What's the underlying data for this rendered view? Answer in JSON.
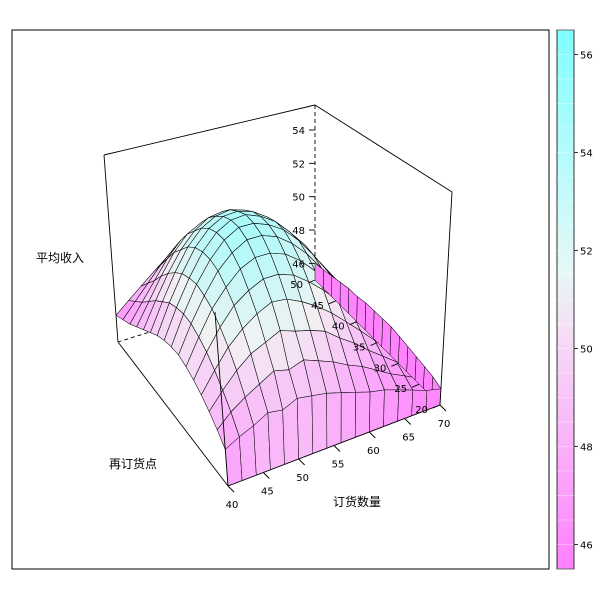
{
  "chart_data": {
    "type": "surface3d",
    "title": "",
    "xlabel": "订货数量",
    "ylabel": "再订货点",
    "zlabel": "平均收入",
    "x_ticks": [
      40,
      45,
      50,
      55,
      60,
      65,
      70
    ],
    "y_ticks": [
      20,
      25,
      30,
      35,
      40,
      45,
      50
    ],
    "z_ticks": [
      46,
      48,
      50,
      52,
      54
    ],
    "xlim": [
      40,
      70
    ],
    "ylim": [
      20,
      50
    ],
    "zlim": [
      45,
      55.5
    ],
    "surface": {
      "description_peak": {
        "x": 55,
        "y": 40,
        "z": 54.5
      },
      "edge_value": 46.5,
      "x": [
        40,
        42,
        44,
        46,
        48,
        50,
        52,
        54,
        56,
        58,
        60,
        62,
        64,
        66,
        68,
        70
      ],
      "y": [
        20,
        22,
        24,
        26,
        28,
        30,
        32,
        34,
        36,
        38,
        40,
        42,
        44,
        46,
        48,
        50
      ],
      "z": [
        [
          47.2,
          47.6,
          47.9,
          48.3,
          48.1,
          48.4,
          48.2,
          48.0,
          47.7,
          47.4,
          47.1,
          46.9,
          46.6,
          46.3,
          46.0,
          45.8
        ],
        [
          47.8,
          48.5,
          49.0,
          49.4,
          49.8,
          49.5,
          49.7,
          49.3,
          48.9,
          48.4,
          48.0,
          47.5,
          47.0,
          46.6,
          46.2,
          46.0
        ],
        [
          48.3,
          49.2,
          50.0,
          50.6,
          50.9,
          51.2,
          50.8,
          50.5,
          50.1,
          49.4,
          48.8,
          48.1,
          47.5,
          46.9,
          46.4,
          46.1
        ],
        [
          48.7,
          49.8,
          50.8,
          51.5,
          52.0,
          52.3,
          52.1,
          51.6,
          51.0,
          50.3,
          49.5,
          48.7,
          47.9,
          47.2,
          46.6,
          46.2
        ],
        [
          49.0,
          50.3,
          51.4,
          52.3,
          52.8,
          53.1,
          53.0,
          52.6,
          51.9,
          51.1,
          50.2,
          49.2,
          48.3,
          47.5,
          46.8,
          46.3
        ],
        [
          49.2,
          50.6,
          51.9,
          52.8,
          53.5,
          53.8,
          53.7,
          53.3,
          52.6,
          51.7,
          50.7,
          49.7,
          48.6,
          47.7,
          46.9,
          46.4
        ],
        [
          49.3,
          50.8,
          52.1,
          53.2,
          53.9,
          54.3,
          54.2,
          53.8,
          53.1,
          52.2,
          51.1,
          50.0,
          48.9,
          47.9,
          47.0,
          46.5
        ],
        [
          49.2,
          50.8,
          52.2,
          53.3,
          54.1,
          54.5,
          54.4,
          54.0,
          53.4,
          52.5,
          51.4,
          50.2,
          49.1,
          48.0,
          47.1,
          46.5
        ],
        [
          49.0,
          50.6,
          52.0,
          53.2,
          54.0,
          54.4,
          54.4,
          54.0,
          53.4,
          52.5,
          51.5,
          50.3,
          49.2,
          48.1,
          47.1,
          46.5
        ],
        [
          48.7,
          50.3,
          51.7,
          52.9,
          53.7,
          54.1,
          54.1,
          53.8,
          53.2,
          52.4,
          51.4,
          50.3,
          49.1,
          48.0,
          47.1,
          46.5
        ],
        [
          48.3,
          49.8,
          51.2,
          52.4,
          53.2,
          53.6,
          53.7,
          53.4,
          52.8,
          52.1,
          51.1,
          50.1,
          49.0,
          47.9,
          47.0,
          46.4
        ],
        [
          47.9,
          49.3,
          50.6,
          51.7,
          52.5,
          53.0,
          53.1,
          52.8,
          52.3,
          51.6,
          50.7,
          49.7,
          48.7,
          47.7,
          46.9,
          46.4
        ],
        [
          47.5,
          48.7,
          49.9,
          51.0,
          51.8,
          52.2,
          52.3,
          52.1,
          51.6,
          51.0,
          50.2,
          49.3,
          48.4,
          47.5,
          46.8,
          46.3
        ],
        [
          47.1,
          48.1,
          49.1,
          50.1,
          50.9,
          51.3,
          51.4,
          51.3,
          50.9,
          50.3,
          49.6,
          48.8,
          48.0,
          47.2,
          46.6,
          46.2
        ],
        [
          46.8,
          47.6,
          48.4,
          49.2,
          49.9,
          50.3,
          50.5,
          50.4,
          50.1,
          49.6,
          49.0,
          48.3,
          47.6,
          46.9,
          46.4,
          46.1
        ],
        [
          46.5,
          47.1,
          47.7,
          48.3,
          48.9,
          49.3,
          49.5,
          49.5,
          49.3,
          48.9,
          48.4,
          47.8,
          47.2,
          46.7,
          46.3,
          46.0
        ]
      ]
    },
    "colorkey": {
      "range": [
        45.5,
        56.5
      ],
      "ticks": [
        46,
        48,
        50,
        52,
        54,
        56
      ],
      "low_color": "#FF80FF",
      "mid_color": "#F2F2F2",
      "high_color": "#80FFFF"
    }
  },
  "colors": {
    "frame": "#000000",
    "background": "#ffffff"
  }
}
